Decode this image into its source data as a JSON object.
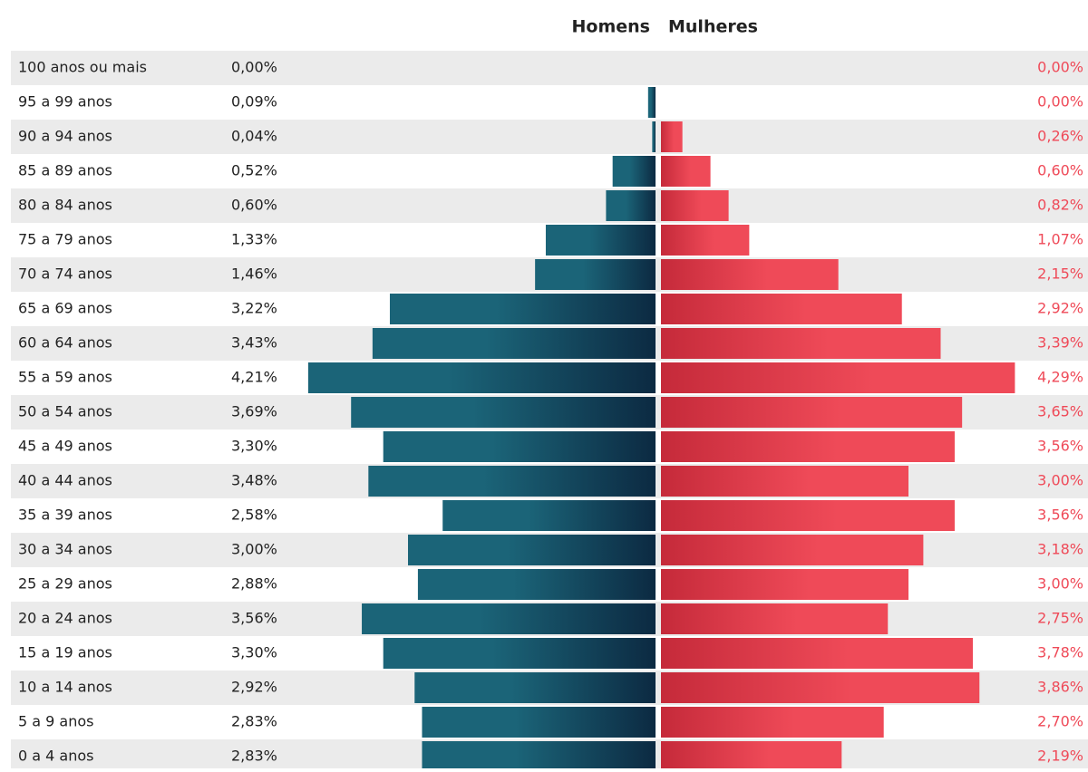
{
  "chart_data": {
    "type": "pyramid",
    "categories": [
      "100 anos ou mais",
      "95 a 99 anos",
      "90 a 94 anos",
      "85 a 89 anos",
      "80 a 84 anos",
      "75 a 79 anos",
      "70 a 74 anos",
      "65 a 69 anos",
      "60 a 64 anos",
      "55 a 59 anos",
      "50 a 54 anos",
      "45 a 49 anos",
      "40 a 44 anos",
      "35 a 39 anos",
      "30 a 34 anos",
      "25 a 29 anos",
      "20 a 24 anos",
      "15 a 19 anos",
      "10 a 14 anos",
      "5 a 9 anos",
      "0 a 4 anos"
    ],
    "series": [
      {
        "name": "Homens",
        "color": "#1b6478",
        "values": [
          0.0,
          0.09,
          0.04,
          0.52,
          0.6,
          1.33,
          1.46,
          3.22,
          3.43,
          4.21,
          3.69,
          3.3,
          3.48,
          2.58,
          3.0,
          2.88,
          3.56,
          3.3,
          2.92,
          2.83,
          2.83
        ],
        "value_labels": [
          "0,00%",
          "0,09%",
          "0,04%",
          "0,52%",
          "0,60%",
          "1,33%",
          "1,46%",
          "3,22%",
          "3,43%",
          "4,21%",
          "3,69%",
          "3,30%",
          "3,48%",
          "2,58%",
          "3,00%",
          "2,88%",
          "3,56%",
          "3,30%",
          "2,92%",
          "2,83%",
          "2,83%"
        ]
      },
      {
        "name": "Mulheres",
        "color": "#ef4a58",
        "values": [
          0.0,
          0.0,
          0.26,
          0.6,
          0.82,
          1.07,
          2.15,
          2.92,
          3.39,
          4.29,
          3.65,
          3.56,
          3.0,
          3.56,
          3.18,
          3.0,
          2.75,
          3.78,
          3.86,
          2.7,
          2.19
        ],
        "value_labels": [
          "0,00%",
          "0,00%",
          "0,26%",
          "0,60%",
          "0,82%",
          "1,07%",
          "2,15%",
          "2,92%",
          "3,39%",
          "4,29%",
          "3,65%",
          "3,56%",
          "3,00%",
          "3,56%",
          "3,18%",
          "3,00%",
          "2,75%",
          "3,78%",
          "3,86%",
          "2,70%",
          "2,19%"
        ]
      }
    ]
  }
}
